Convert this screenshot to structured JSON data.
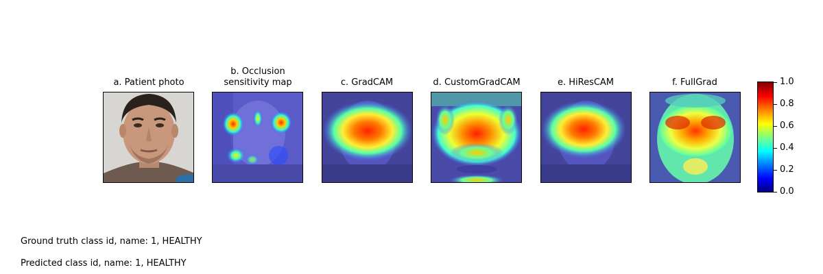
{
  "panels": [
    {
      "title": "a. Patient photo"
    },
    {
      "title": "b. Occlusion\nsensitivity map"
    },
    {
      "title": "c. GradCAM"
    },
    {
      "title": "d. CustomGradCAM"
    },
    {
      "title": "e. HiResCAM"
    },
    {
      "title": "f. FullGrad"
    }
  ],
  "colorbar": {
    "ticks": [
      "0.0",
      "0.2",
      "0.4",
      "0.6",
      "0.8",
      "1.0"
    ],
    "colormap": "jet"
  },
  "info": {
    "ground_truth": "Ground truth class id, name: 1, HEALTHY",
    "predicted": "Predicted class id, name: 1, HEALTHY"
  }
}
